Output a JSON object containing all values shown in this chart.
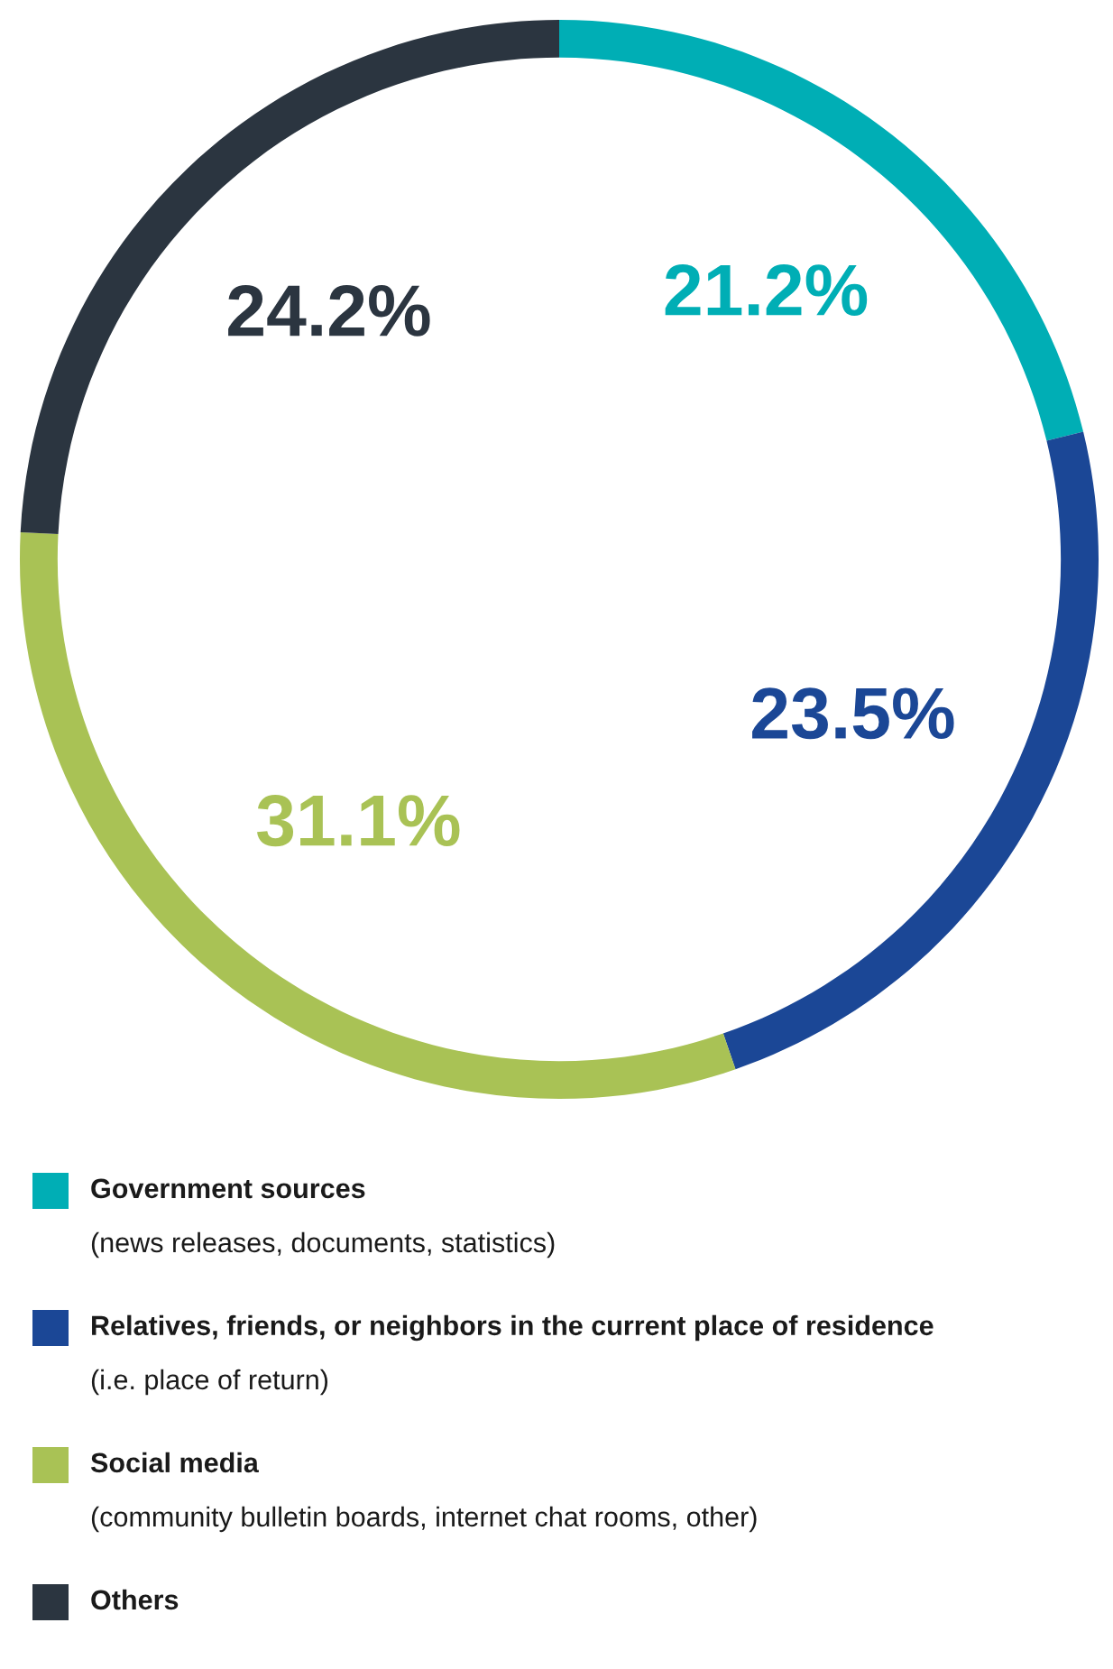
{
  "chart_data": {
    "type": "donut",
    "categories": [
      "Government sources",
      "Relatives, friends, or neighbors in the current place of residence",
      "Social media",
      "Others"
    ],
    "values": [
      21.2,
      23.5,
      31.1,
      24.2
    ],
    "colors": [
      "#00aeb5",
      "#1b4796",
      "#a9c255",
      "#2b3540"
    ],
    "value_labels": [
      "21.2%",
      "23.5%",
      "31.1%",
      "24.2%"
    ],
    "annotations": [
      "(news releases, documents, statistics)",
      "(i.e. place of return)",
      "(community bulletin boards, internet chat rooms, other)"
    ],
    "legend": "bottom"
  }
}
